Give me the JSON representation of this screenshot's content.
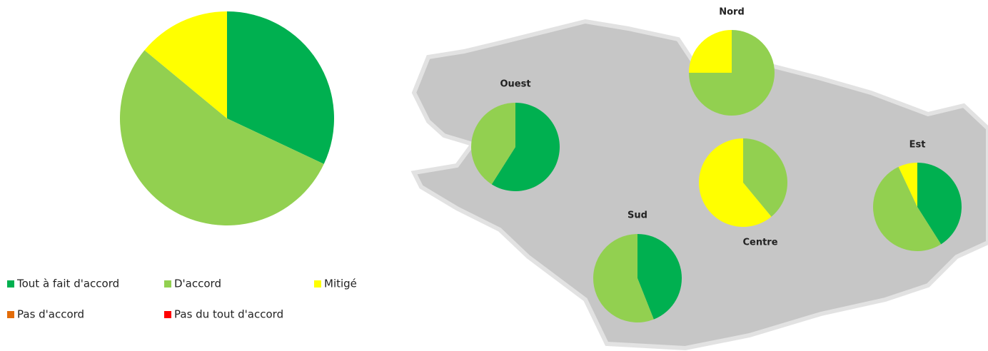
{
  "chart_data": [
    {
      "type": "pie",
      "categories": [
        "Tout à fait d'accord",
        "D'accord",
        "Mitigé",
        "Pas d'accord",
        "Pas du tout d'accord"
      ],
      "colors": [
        "#00b050",
        "#92d050",
        "#ffff00",
        "#e36c09",
        "#ff0000"
      ],
      "values": [
        32,
        54,
        14,
        0,
        0
      ],
      "legend": "bottom"
    },
    {
      "type": "pie",
      "title": "Nord",
      "values": [
        0,
        75,
        25,
        0,
        0
      ]
    },
    {
      "type": "pie",
      "title": "Ouest",
      "values": [
        59,
        41,
        0,
        0,
        0
      ]
    },
    {
      "type": "pie",
      "title": "Centre",
      "values": [
        0,
        39,
        61,
        0,
        0
      ]
    },
    {
      "type": "pie",
      "title": "Est",
      "values": [
        41,
        52,
        7,
        0,
        0
      ]
    },
    {
      "type": "pie",
      "title": "Sud",
      "values": [
        44,
        56,
        0,
        0,
        0
      ]
    }
  ]
}
